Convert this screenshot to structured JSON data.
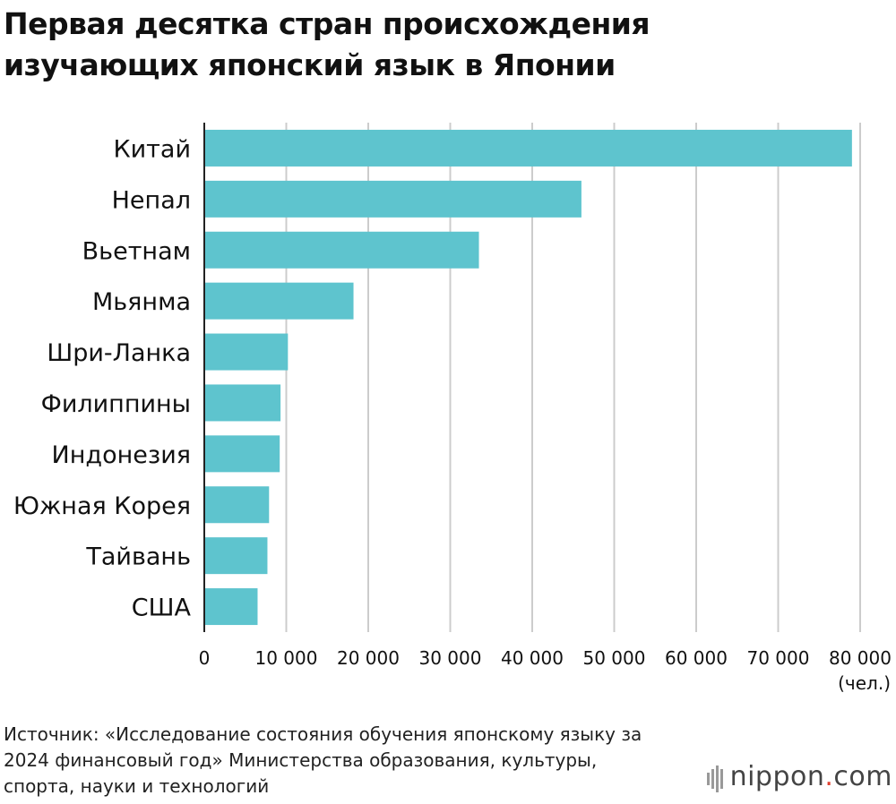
{
  "title": {
    "line1": "Первая десятка стран происхождения",
    "line2": "изучающих японский язык в Японии"
  },
  "chart_data": {
    "type": "bar",
    "orientation": "horizontal",
    "title": "Первая десятка стран происхождения изучающих японский язык в Японии",
    "categories": [
      "Китай",
      "Непал",
      "Вьетнам",
      "Мьянма",
      "Шри-Ланка",
      "Филиппины",
      "Индонезия",
      "Южная Корея",
      "Тайвань",
      "США"
    ],
    "values": [
      79000,
      46000,
      33500,
      18200,
      10200,
      9300,
      9200,
      7900,
      7700,
      6500
    ],
    "xlim": [
      0,
      80000
    ],
    "xticks": [
      0,
      10000,
      20000,
      30000,
      40000,
      50000,
      60000,
      70000,
      80000
    ],
    "xtick_labels": [
      "0",
      "10 000",
      "20 000",
      "30 000",
      "40 000",
      "50 000",
      "60 000",
      "70 000",
      "80 000"
    ],
    "unit_label": "(чел.)",
    "grid": true,
    "bar_color": "#5ec4ce"
  },
  "source": {
    "line1": "Источник: «Исследование состояния обучения японскому языку за",
    "line2": "2024 финансовый год» Министерства образования, культуры,",
    "line3": "спорта, науки и технологий"
  },
  "logo": {
    "name": "nippon",
    "dot": ".",
    "suffix": "com"
  },
  "colors": {
    "gridline": "#cccccc",
    "axis": "#222222"
  }
}
